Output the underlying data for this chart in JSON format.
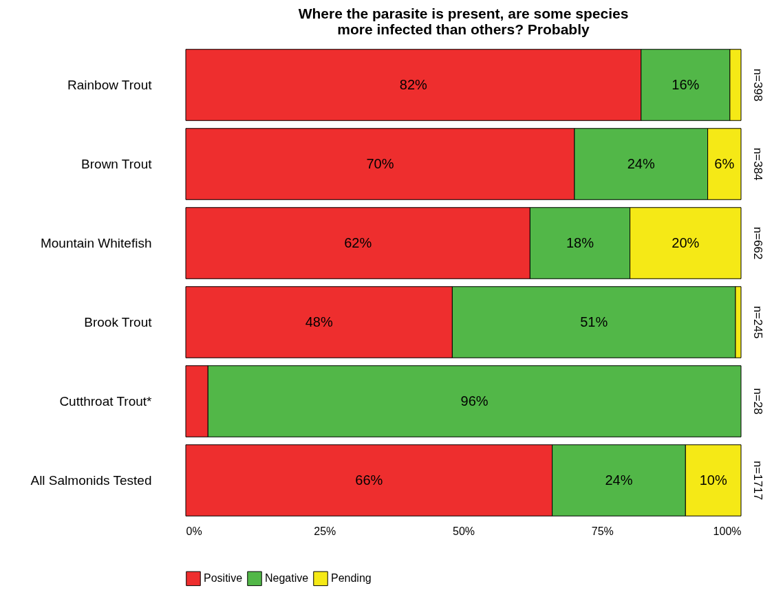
{
  "chart_data": {
    "type": "bar",
    "orientation": "horizontal",
    "stacked": true,
    "title": "Where the parasite is present, are some species\nmore infected than others? Probably",
    "categories": [
      "Rainbow Trout",
      "Brown Trout",
      "Mountain Whitefish",
      "Brook Trout",
      "Cutthroat Trout*",
      "All Salmonids Tested"
    ],
    "series": [
      {
        "name": "Positive",
        "color": "#ee2e2e",
        "values": [
          82,
          70,
          62,
          48,
          4,
          66
        ],
        "value_labels": [
          "82%",
          "70%",
          "62%",
          "48%",
          null,
          "66%"
        ]
      },
      {
        "name": "Negative",
        "color": "#52b748",
        "values": [
          16,
          24,
          18,
          51,
          96,
          24
        ],
        "value_labels": [
          "16%",
          "24%",
          "18%",
          "51%",
          "96%",
          "24%"
        ]
      },
      {
        "name": "Pending",
        "color": "#f5e916",
        "values": [
          2,
          6,
          20,
          1,
          null,
          10
        ],
        "value_labels": [
          null,
          "6%",
          "20%",
          null,
          null,
          "10%"
        ]
      }
    ],
    "xlim": [
      0,
      100
    ],
    "xticks": [
      {
        "value": 0,
        "label": "0%"
      },
      {
        "value": 25,
        "label": "25%"
      },
      {
        "value": 50,
        "label": "50%"
      },
      {
        "value": 75,
        "label": "75%"
      },
      {
        "value": 100,
        "label": "100%"
      }
    ],
    "legend": "bottom",
    "annotations": [
      "n=398",
      "n=384",
      "n=662",
      "n=245",
      "n=28",
      "n=1717"
    ]
  }
}
